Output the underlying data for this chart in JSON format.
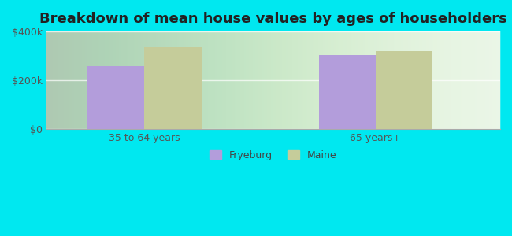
{
  "title": "Breakdown of mean house values by ages of householders",
  "categories": [
    "35 to 64 years",
    "65 years+"
  ],
  "series": {
    "Fryeburg": [
      260000,
      305000
    ],
    "Maine": [
      335000,
      320000
    ]
  },
  "bar_colors": {
    "Fryeburg": "#b39ddb",
    "Maine": "#c5cc9a"
  },
  "ylim": [
    0,
    400000
  ],
  "yticks": [
    0,
    200000,
    400000
  ],
  "ytick_labels": [
    "$0",
    "$200k",
    "$400k"
  ],
  "background_color": "#00e8f0",
  "title_fontsize": 13,
  "tick_fontsize": 9,
  "legend_fontsize": 9,
  "bar_width": 0.32,
  "group_positions": [
    0.55,
    1.85
  ]
}
